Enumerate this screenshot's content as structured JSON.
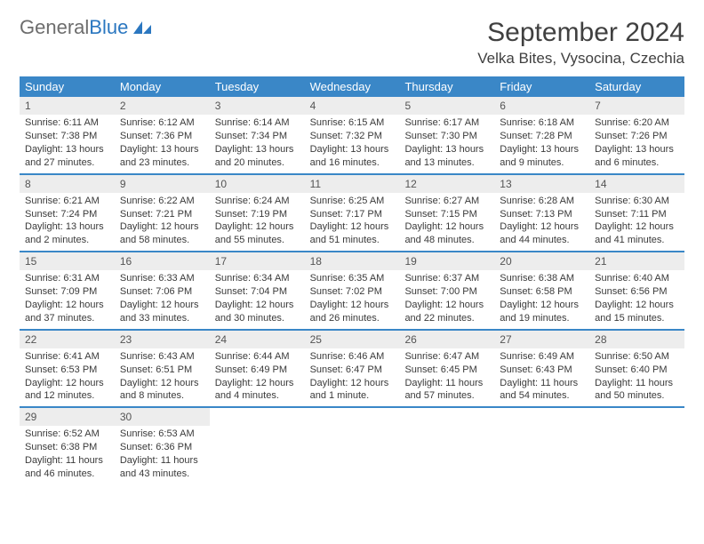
{
  "colors": {
    "header_bg": "#3a87c7",
    "header_text": "#ffffff",
    "daynum_bg": "#ededed",
    "daynum_text": "#545454",
    "body_text": "#3a3a3a",
    "week_border": "#3a87c7",
    "title_text": "#404040",
    "logo_gray": "#6d6d6d",
    "logo_blue": "#2b77c0",
    "page_bg": "#ffffff"
  },
  "fonts": {
    "family": "Arial",
    "month_title_size": 30,
    "location_size": 17,
    "day_header_size": 13,
    "daynum_size": 12,
    "cell_size": 11,
    "logo_size": 22
  },
  "logo": {
    "text1": "General",
    "text2": "Blue"
  },
  "month_title": "September 2024",
  "location": "Velka Bites, Vysocina, Czechia",
  "day_names": [
    "Sunday",
    "Monday",
    "Tuesday",
    "Wednesday",
    "Thursday",
    "Friday",
    "Saturday"
  ],
  "grid": {
    "columns": 7,
    "rows": 5,
    "first_weekday_index": 0,
    "days_in_month": 30
  },
  "days": [
    {
      "n": 1,
      "sunrise": "Sunrise: 6:11 AM",
      "sunset": "Sunset: 7:38 PM",
      "daylight": "Daylight: 13 hours and 27 minutes."
    },
    {
      "n": 2,
      "sunrise": "Sunrise: 6:12 AM",
      "sunset": "Sunset: 7:36 PM",
      "daylight": "Daylight: 13 hours and 23 minutes."
    },
    {
      "n": 3,
      "sunrise": "Sunrise: 6:14 AM",
      "sunset": "Sunset: 7:34 PM",
      "daylight": "Daylight: 13 hours and 20 minutes."
    },
    {
      "n": 4,
      "sunrise": "Sunrise: 6:15 AM",
      "sunset": "Sunset: 7:32 PM",
      "daylight": "Daylight: 13 hours and 16 minutes."
    },
    {
      "n": 5,
      "sunrise": "Sunrise: 6:17 AM",
      "sunset": "Sunset: 7:30 PM",
      "daylight": "Daylight: 13 hours and 13 minutes."
    },
    {
      "n": 6,
      "sunrise": "Sunrise: 6:18 AM",
      "sunset": "Sunset: 7:28 PM",
      "daylight": "Daylight: 13 hours and 9 minutes."
    },
    {
      "n": 7,
      "sunrise": "Sunrise: 6:20 AM",
      "sunset": "Sunset: 7:26 PM",
      "daylight": "Daylight: 13 hours and 6 minutes."
    },
    {
      "n": 8,
      "sunrise": "Sunrise: 6:21 AM",
      "sunset": "Sunset: 7:24 PM",
      "daylight": "Daylight: 13 hours and 2 minutes."
    },
    {
      "n": 9,
      "sunrise": "Sunrise: 6:22 AM",
      "sunset": "Sunset: 7:21 PM",
      "daylight": "Daylight: 12 hours and 58 minutes."
    },
    {
      "n": 10,
      "sunrise": "Sunrise: 6:24 AM",
      "sunset": "Sunset: 7:19 PM",
      "daylight": "Daylight: 12 hours and 55 minutes."
    },
    {
      "n": 11,
      "sunrise": "Sunrise: 6:25 AM",
      "sunset": "Sunset: 7:17 PM",
      "daylight": "Daylight: 12 hours and 51 minutes."
    },
    {
      "n": 12,
      "sunrise": "Sunrise: 6:27 AM",
      "sunset": "Sunset: 7:15 PM",
      "daylight": "Daylight: 12 hours and 48 minutes."
    },
    {
      "n": 13,
      "sunrise": "Sunrise: 6:28 AM",
      "sunset": "Sunset: 7:13 PM",
      "daylight": "Daylight: 12 hours and 44 minutes."
    },
    {
      "n": 14,
      "sunrise": "Sunrise: 6:30 AM",
      "sunset": "Sunset: 7:11 PM",
      "daylight": "Daylight: 12 hours and 41 minutes."
    },
    {
      "n": 15,
      "sunrise": "Sunrise: 6:31 AM",
      "sunset": "Sunset: 7:09 PM",
      "daylight": "Daylight: 12 hours and 37 minutes."
    },
    {
      "n": 16,
      "sunrise": "Sunrise: 6:33 AM",
      "sunset": "Sunset: 7:06 PM",
      "daylight": "Daylight: 12 hours and 33 minutes."
    },
    {
      "n": 17,
      "sunrise": "Sunrise: 6:34 AM",
      "sunset": "Sunset: 7:04 PM",
      "daylight": "Daylight: 12 hours and 30 minutes."
    },
    {
      "n": 18,
      "sunrise": "Sunrise: 6:35 AM",
      "sunset": "Sunset: 7:02 PM",
      "daylight": "Daylight: 12 hours and 26 minutes."
    },
    {
      "n": 19,
      "sunrise": "Sunrise: 6:37 AM",
      "sunset": "Sunset: 7:00 PM",
      "daylight": "Daylight: 12 hours and 22 minutes."
    },
    {
      "n": 20,
      "sunrise": "Sunrise: 6:38 AM",
      "sunset": "Sunset: 6:58 PM",
      "daylight": "Daylight: 12 hours and 19 minutes."
    },
    {
      "n": 21,
      "sunrise": "Sunrise: 6:40 AM",
      "sunset": "Sunset: 6:56 PM",
      "daylight": "Daylight: 12 hours and 15 minutes."
    },
    {
      "n": 22,
      "sunrise": "Sunrise: 6:41 AM",
      "sunset": "Sunset: 6:53 PM",
      "daylight": "Daylight: 12 hours and 12 minutes."
    },
    {
      "n": 23,
      "sunrise": "Sunrise: 6:43 AM",
      "sunset": "Sunset: 6:51 PM",
      "daylight": "Daylight: 12 hours and 8 minutes."
    },
    {
      "n": 24,
      "sunrise": "Sunrise: 6:44 AM",
      "sunset": "Sunset: 6:49 PM",
      "daylight": "Daylight: 12 hours and 4 minutes."
    },
    {
      "n": 25,
      "sunrise": "Sunrise: 6:46 AM",
      "sunset": "Sunset: 6:47 PM",
      "daylight": "Daylight: 12 hours and 1 minute."
    },
    {
      "n": 26,
      "sunrise": "Sunrise: 6:47 AM",
      "sunset": "Sunset: 6:45 PM",
      "daylight": "Daylight: 11 hours and 57 minutes."
    },
    {
      "n": 27,
      "sunrise": "Sunrise: 6:49 AM",
      "sunset": "Sunset: 6:43 PM",
      "daylight": "Daylight: 11 hours and 54 minutes."
    },
    {
      "n": 28,
      "sunrise": "Sunrise: 6:50 AM",
      "sunset": "Sunset: 6:40 PM",
      "daylight": "Daylight: 11 hours and 50 minutes."
    },
    {
      "n": 29,
      "sunrise": "Sunrise: 6:52 AM",
      "sunset": "Sunset: 6:38 PM",
      "daylight": "Daylight: 11 hours and 46 minutes."
    },
    {
      "n": 30,
      "sunrise": "Sunrise: 6:53 AM",
      "sunset": "Sunset: 6:36 PM",
      "daylight": "Daylight: 11 hours and 43 minutes."
    }
  ]
}
